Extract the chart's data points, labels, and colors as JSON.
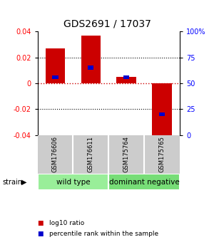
{
  "title": "GDS2691 / 17037",
  "samples": [
    "GSM176606",
    "GSM176611",
    "GSM175764",
    "GSM175765"
  ],
  "log10_ratio": [
    0.027,
    0.037,
    0.005,
    -0.043
  ],
  "percentile_rank": [
    56,
    65,
    56,
    20
  ],
  "ylim": [
    -0.04,
    0.04
  ],
  "yticks_left": [
    -0.04,
    -0.02,
    0.0,
    0.02,
    0.04
  ],
  "yticks_right": [
    0,
    25,
    50,
    75,
    100
  ],
  "groups": [
    {
      "label": "wild type",
      "indices": [
        0,
        1
      ],
      "color": "#99ee99"
    },
    {
      "label": "dominant negative",
      "indices": [
        2,
        3
      ],
      "color": "#77dd77"
    }
  ],
  "bar_color_red": "#cc0000",
  "bar_color_blue": "#0000cc",
  "bar_width": 0.55,
  "zero_line_color": "#cc0000",
  "bg_color": "#ffffff",
  "plot_bg_color": "#ffffff",
  "label_row_bg": "#cccccc",
  "strain_label": "strain",
  "legend_items": [
    {
      "label": "log10 ratio",
      "color": "#cc0000"
    },
    {
      "label": "percentile rank within the sample",
      "color": "#0000cc"
    }
  ],
  "title_fontsize": 10,
  "tick_fontsize": 7,
  "sample_fontsize": 6,
  "group_fontsize": 7.5,
  "legend_fontsize": 6.5
}
